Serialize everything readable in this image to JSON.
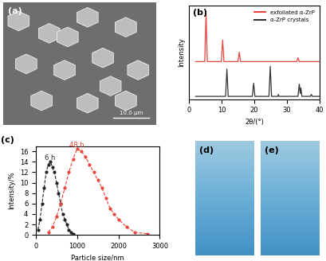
{
  "chart_data": [
    {
      "type": "line",
      "title": "(b)",
      "x_label": "2θ/(°)",
      "y_label": "Intensity",
      "xlim": [
        0,
        40
      ],
      "xticks": [
        0,
        10,
        20,
        30,
        40
      ],
      "ylim": [
        0,
        1
      ],
      "tick_labels": "x",
      "legend": "upper right",
      "series": [
        {
          "name": "exfoliated α-ZrP",
          "color": "#e8453c",
          "line_style": "solid",
          "x": [
            2,
            4.8,
            5.2,
            5.6,
            9.9,
            10.3,
            10.7,
            15.0,
            15.4,
            15.8,
            33.0,
            33.4,
            33.8,
            40
          ],
          "values": [
            0.4,
            0.4,
            0.91,
            0.4,
            0.4,
            0.63,
            0.4,
            0.4,
            0.5,
            0.4,
            0.4,
            0.44,
            0.4,
            0.4
          ]
        },
        {
          "name": "α-ZrP crystals",
          "color": "#333333",
          "line_style": "solid",
          "x": [
            2,
            11.2,
            11.6,
            12.0,
            19.4,
            19.8,
            20.2,
            24.5,
            24.9,
            25.3,
            27.2,
            27.4,
            27.6,
            33.4,
            33.8,
            34.1,
            34.3,
            34.6,
            37.2,
            37.5,
            37.8,
            40
          ],
          "values": [
            0.03,
            0.03,
            0.32,
            0.03,
            0.03,
            0.17,
            0.03,
            0.03,
            0.35,
            0.03,
            0.03,
            0.05,
            0.03,
            0.03,
            0.16,
            0.06,
            0.12,
            0.03,
            0.03,
            0.05,
            0.03,
            0.03
          ]
        }
      ]
    },
    {
      "type": "scatter",
      "title": "(c)",
      "x_label": "Particle size/nm",
      "y_label": "Intensity/%",
      "xlim": [
        0,
        3000
      ],
      "xticks": [
        0,
        1000,
        2000,
        3000
      ],
      "ylim": [
        0,
        17
      ],
      "yticks": [
        0,
        2,
        4,
        6,
        8,
        10,
        12,
        14,
        16
      ],
      "series": [
        {
          "name": "6 h",
          "color": "#222222",
          "marker": "o",
          "line_style": "dashed",
          "x": [
            50,
            100,
            150,
            200,
            250,
            300,
            350,
            400,
            450,
            500,
            550,
            600,
            650,
            700,
            750,
            800,
            850,
            900
          ],
          "values": [
            1,
            3,
            6,
            9,
            12,
            13.5,
            14,
            13,
            12,
            10,
            8,
            6,
            4,
            3,
            2,
            1,
            0.5,
            0.2
          ]
        },
        {
          "name": "48 h",
          "color": "#e8453c",
          "marker": "o",
          "line_style": "dashed",
          "x": [
            300,
            400,
            500,
            600,
            700,
            800,
            900,
            1000,
            1100,
            1200,
            1300,
            1400,
            1500,
            1600,
            1700,
            1800,
            1900,
            2000,
            2200,
            2400,
            2700
          ],
          "values": [
            0.5,
            1.5,
            3.5,
            6,
            9,
            12,
            14.5,
            16.5,
            16,
            15,
            13.5,
            12,
            10.5,
            9,
            7,
            5,
            4,
            3,
            1.5,
            0.5,
            0.2
          ]
        }
      ]
    }
  ],
  "images": [
    {
      "label": "(a)",
      "texts": [
        "10.0 μm"
      ]
    },
    {
      "label": "(d)"
    },
    {
      "label": "(e)"
    }
  ]
}
